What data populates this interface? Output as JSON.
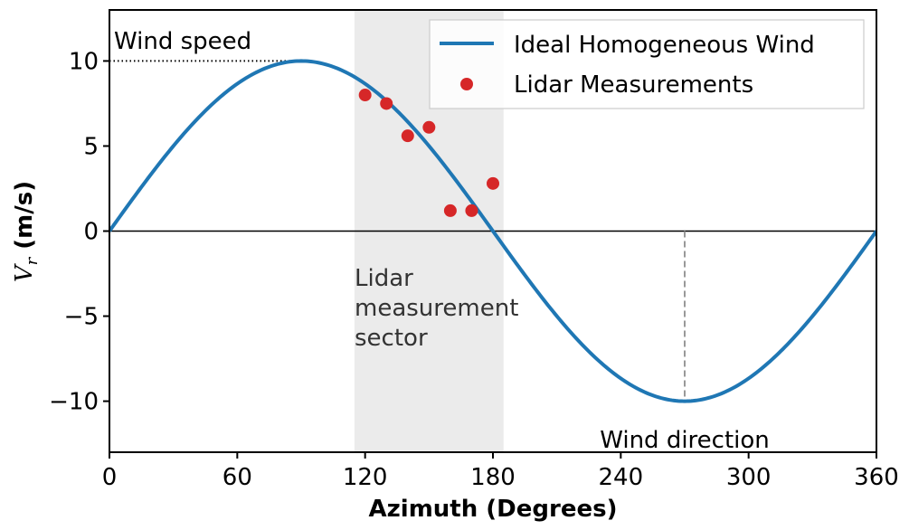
{
  "chart_data": {
    "type": "line",
    "xlabel": "Azimuth (Degrees)",
    "ylabel_var": "V",
    "ylabel_sub": "r",
    "ylabel_unit": " (m/s)",
    "xlim": [
      0,
      360
    ],
    "ylim": [
      -13,
      13
    ],
    "x_ticks": [
      0,
      60,
      120,
      180,
      240,
      300,
      360
    ],
    "x_tick_labels": [
      "0",
      "60",
      "120",
      "180",
      "240",
      "300",
      "360"
    ],
    "y_ticks": [
      10,
      5,
      0,
      -5,
      -10
    ],
    "y_tick_labels": [
      "10",
      "5",
      "0",
      "−5",
      "−10"
    ],
    "grid": false,
    "legend_placement": "upper-right",
    "series": [
      {
        "name": "Ideal Homogeneous Wind",
        "kind": "line",
        "color": "#1f77b4",
        "function": "10*sin(azimuth)",
        "amplitude": 10
      },
      {
        "name": "Lidar Measurements",
        "kind": "scatter",
        "color": "#d62728",
        "x": [
          120,
          130,
          140,
          150,
          160,
          170,
          180
        ],
        "y": [
          8.0,
          7.5,
          5.6,
          6.1,
          1.2,
          1.2,
          2.8
        ]
      }
    ],
    "shaded_region": {
      "x": [
        115,
        185
      ],
      "color": "#ebebeb"
    },
    "annotations": {
      "wind_speed": "Wind speed",
      "lidar_sector_lines": [
        "Lidar",
        "measurement",
        "sector"
      ],
      "wind_direction": "Wind direction"
    },
    "reference_lines": {
      "wind_speed_value": 10,
      "wind_speed_x_end": 90,
      "wind_direction_azimuth": 270,
      "zero_line": 0
    }
  }
}
